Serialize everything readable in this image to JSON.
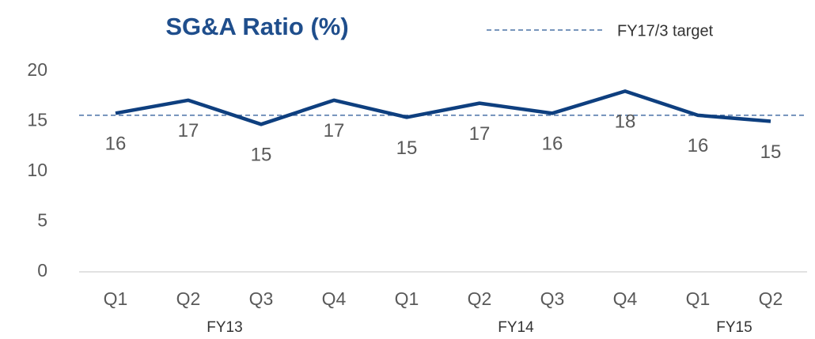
{
  "chart_data": {
    "type": "line",
    "title": "SG&A Ratio (%)",
    "groups": [
      {
        "name": "FY13",
        "categories": [
          "Q1",
          "Q2",
          "Q3",
          "Q4"
        ]
      },
      {
        "name": "FY14",
        "categories": [
          "Q1",
          "Q2",
          "Q3",
          "Q4"
        ]
      },
      {
        "name": "FY15",
        "categories": [
          "Q1",
          "Q2"
        ]
      }
    ],
    "series": [
      {
        "name": "SG&A Ratio",
        "color": "#0e3f7f",
        "values": [
          15.8,
          17.1,
          14.7,
          17.1,
          15.4,
          16.8,
          15.8,
          18.0,
          15.6,
          15.0
        ],
        "value_labels": [
          "16",
          "17",
          "15",
          "17",
          "15",
          "17",
          "16",
          "18",
          "16",
          "15"
        ]
      }
    ],
    "target": {
      "name": "FY17/3 target",
      "value": 15.6,
      "color": "#4a72a6"
    },
    "ylim": [
      0,
      20
    ],
    "yticks": [
      0,
      5,
      10,
      15,
      20
    ],
    "grid": false
  }
}
